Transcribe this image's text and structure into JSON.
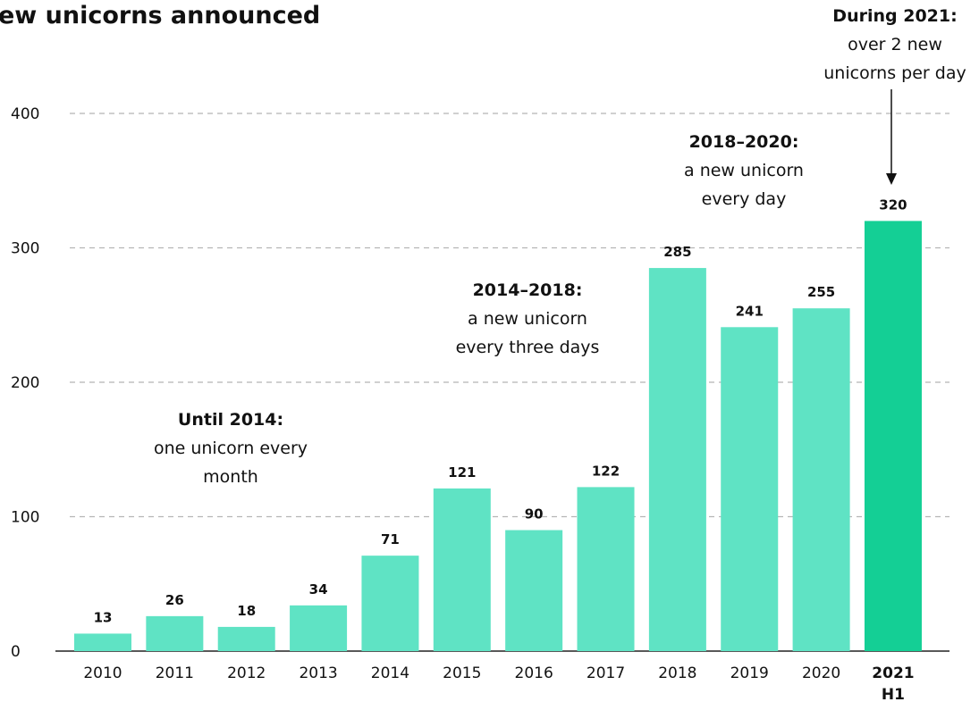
{
  "chart_data": {
    "type": "bar",
    "title": "ew unicorns announced",
    "categories": [
      "2010",
      "2011",
      "2012",
      "2013",
      "2014",
      "2015",
      "2016",
      "2017",
      "2018",
      "2019",
      "2020",
      "2021"
    ],
    "category_sublabels": [
      "",
      "",
      "",
      "",
      "",
      "",
      "",
      "",
      "",
      "",
      "",
      "H1"
    ],
    "values": [
      13,
      26,
      18,
      34,
      71,
      121,
      90,
      122,
      285,
      241,
      255,
      320
    ],
    "highlight_index": 11,
    "ylim": [
      0,
      400
    ],
    "yticks": [
      0,
      100,
      200,
      300,
      400
    ],
    "grid": true,
    "xlabel": "",
    "ylabel": "",
    "colors": {
      "bar": "#5fe3c4",
      "highlight": "#14cf95",
      "grid": "#b5b5b5"
    },
    "annotations": [
      {
        "bold": "Until 2014:",
        "lines": [
          "one unicorn every",
          "month"
        ]
      },
      {
        "bold": "2014–2018:",
        "lines": [
          "a new unicorn",
          "every three days"
        ]
      },
      {
        "bold": "2018–2020:",
        "lines": [
          "a new unicorn",
          "every day"
        ]
      },
      {
        "bold": "During 2021:",
        "lines": [
          "over 2 new",
          "unicorns per day"
        ]
      }
    ]
  }
}
